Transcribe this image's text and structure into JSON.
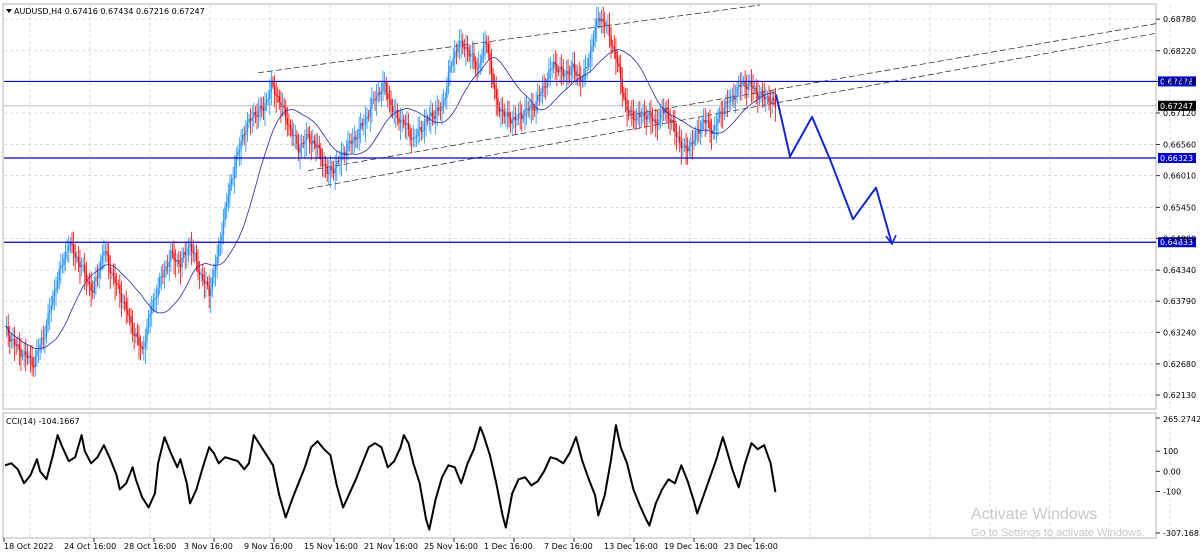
{
  "chart_data": {
    "type": "candlestick",
    "symbol_header": "AUDUSD,H4  0.67416 0.67434 0.67216 0.67247",
    "price_ticks": [
      "0.68780",
      "0.68220",
      "0.67678",
      "0.67120",
      "0.66560",
      "0.66010",
      "0.65450",
      "0.64900",
      "0.64340",
      "0.63790",
      "0.63240",
      "0.62680",
      "0.62130"
    ],
    "ylim": [
      0.619,
      0.6903
    ],
    "x_labels": [
      "18 Oct 2022",
      "24 Oct 16:00",
      "28 Oct 16:00",
      "3 Nov 16:00",
      "9 Nov 16:00",
      "15 Nov 16:00",
      "21 Nov 16:00",
      "25 Nov 16:00",
      "1 Dec 16:00",
      "7 Dec 16:00",
      "13 Dec 16:00",
      "19 Dec 16:00",
      "23 Dec 16:00"
    ],
    "horizontal_levels": [
      {
        "label": "0.67678",
        "value": 0.67678,
        "color": "#0000c8"
      },
      {
        "label": "0.66323",
        "value": 0.66323,
        "color": "#0000c8"
      },
      {
        "label": "0.64833",
        "value": 0.64833,
        "color": "#0000c8"
      }
    ],
    "current_price": {
      "label": "0.67247",
      "value": 0.67247,
      "color": "#000000"
    },
    "bull_color": "#1e90ff",
    "bear_color": "#ff0000",
    "ma_color": "#2828b4",
    "projection_color": "#1428d2",
    "close_path": [
      [
        0,
        0.633
      ],
      [
        8,
        0.6295
      ],
      [
        18,
        0.627
      ],
      [
        25,
        0.6325
      ],
      [
        32,
        0.641
      ],
      [
        40,
        0.6482
      ],
      [
        48,
        0.644
      ],
      [
        55,
        0.6395
      ],
      [
        62,
        0.647
      ],
      [
        68,
        0.642
      ],
      [
        74,
        0.638
      ],
      [
        80,
        0.633
      ],
      [
        86,
        0.629
      ],
      [
        92,
        0.637
      ],
      [
        98,
        0.642
      ],
      [
        104,
        0.646
      ],
      [
        110,
        0.6445
      ],
      [
        116,
        0.648
      ],
      [
        122,
        0.643
      ],
      [
        128,
        0.6395
      ],
      [
        133,
        0.6455
      ],
      [
        138,
        0.654
      ],
      [
        144,
        0.662
      ],
      [
        150,
        0.668
      ],
      [
        156,
        0.671
      ],
      [
        162,
        0.672
      ],
      [
        167,
        0.676
      ],
      [
        172,
        0.6735
      ],
      [
        178,
        0.669
      ],
      [
        184,
        0.665
      ],
      [
        190,
        0.667
      ],
      [
        196,
        0.665
      ],
      [
        202,
        0.6605
      ],
      [
        208,
        0.662
      ],
      [
        214,
        0.665
      ],
      [
        220,
        0.667
      ],
      [
        226,
        0.67
      ],
      [
        232,
        0.674
      ],
      [
        238,
        0.676
      ],
      [
        244,
        0.671
      ],
      [
        250,
        0.6695
      ],
      [
        256,
        0.6665
      ],
      [
        262,
        0.669
      ],
      [
        268,
        0.671
      ],
      [
        274,
        0.672
      ],
      [
        279,
        0.679
      ],
      [
        284,
        0.6835
      ],
      [
        290,
        0.6825
      ],
      [
        296,
        0.679
      ],
      [
        302,
        0.684
      ],
      [
        308,
        0.673
      ],
      [
        314,
        0.6705
      ],
      [
        320,
        0.67
      ],
      [
        326,
        0.6715
      ],
      [
        332,
        0.6725
      ],
      [
        338,
        0.676
      ],
      [
        344,
        0.68
      ],
      [
        350,
        0.678
      ],
      [
        356,
        0.679
      ],
      [
        362,
        0.677
      ],
      [
        367,
        0.682
      ],
      [
        372,
        0.6885
      ],
      [
        378,
        0.686
      ],
      [
        384,
        0.68
      ],
      [
        390,
        0.6715
      ],
      [
        396,
        0.6705
      ],
      [
        402,
        0.671
      ],
      [
        408,
        0.6695
      ],
      [
        414,
        0.672
      ],
      [
        420,
        0.668
      ],
      [
        426,
        0.6645
      ],
      [
        432,
        0.6665
      ],
      [
        438,
        0.67
      ],
      [
        444,
        0.668
      ],
      [
        450,
        0.672
      ],
      [
        456,
        0.674
      ],
      [
        462,
        0.6765
      ],
      [
        468,
        0.676
      ],
      [
        474,
        0.674
      ],
      [
        478,
        0.674
      ],
      [
        483,
        0.6725
      ]
    ],
    "cci": {
      "label": "CCI(14) -104.1667",
      "ticks": [
        "265.2742",
        "100",
        "0.00",
        "-100",
        "-307.1683"
      ],
      "ylim": [
        -307.1683,
        265.2742
      ],
      "values": [
        [
          0,
          30
        ],
        [
          4,
          40
        ],
        [
          8,
          10
        ],
        [
          12,
          -60
        ],
        [
          16,
          -20
        ],
        [
          20,
          60
        ],
        [
          22,
          0
        ],
        [
          26,
          -40
        ],
        [
          30,
          80
        ],
        [
          33,
          180
        ],
        [
          36,
          120
        ],
        [
          40,
          50
        ],
        [
          44,
          70
        ],
        [
          48,
          180
        ],
        [
          50,
          100
        ],
        [
          54,
          40
        ],
        [
          58,
          70
        ],
        [
          62,
          130
        ],
        [
          66,
          60
        ],
        [
          70,
          -20
        ],
        [
          72,
          -90
        ],
        [
          76,
          -60
        ],
        [
          80,
          20
        ],
        [
          82,
          -40
        ],
        [
          86,
          -130
        ],
        [
          90,
          -180
        ],
        [
          94,
          -110
        ],
        [
          96,
          40
        ],
        [
          100,
          170
        ],
        [
          104,
          90
        ],
        [
          108,
          20
        ],
        [
          110,
          60
        ],
        [
          114,
          -60
        ],
        [
          116,
          -160
        ],
        [
          120,
          -90
        ],
        [
          124,
          20
        ],
        [
          128,
          120
        ],
        [
          131,
          90
        ],
        [
          134,
          40
        ],
        [
          138,
          70
        ],
        [
          142,
          60
        ],
        [
          146,
          50
        ],
        [
          150,
          10
        ],
        [
          153,
          40
        ],
        [
          156,
          180
        ],
        [
          160,
          130
        ],
        [
          164,
          80
        ],
        [
          168,
          30
        ],
        [
          172,
          -120
        ],
        [
          176,
          -230
        ],
        [
          180,
          -140
        ],
        [
          184,
          -60
        ],
        [
          188,
          20
        ],
        [
          192,
          120
        ],
        [
          196,
          150
        ],
        [
          200,
          110
        ],
        [
          204,
          80
        ],
        [
          208,
          -70
        ],
        [
          212,
          -180
        ],
        [
          216,
          -110
        ],
        [
          220,
          -40
        ],
        [
          224,
          40
        ],
        [
          228,
          120
        ],
        [
          232,
          140
        ],
        [
          236,
          120
        ],
        [
          240,
          20
        ],
        [
          244,
          50
        ],
        [
          248,
          120
        ],
        [
          250,
          180
        ],
        [
          253,
          140
        ],
        [
          256,
          40
        ],
        [
          260,
          -60
        ],
        [
          264,
          -240
        ],
        [
          266,
          -290
        ],
        [
          270,
          -140
        ],
        [
          274,
          -30
        ],
        [
          278,
          30
        ],
        [
          282,
          20
        ],
        [
          286,
          -60
        ],
        [
          290,
          40
        ],
        [
          294,
          110
        ],
        [
          298,
          220
        ],
        [
          300,
          180
        ],
        [
          304,
          80
        ],
        [
          308,
          -60
        ],
        [
          312,
          -220
        ],
        [
          314,
          -280
        ],
        [
          318,
          -110
        ],
        [
          322,
          -40
        ],
        [
          326,
          -30
        ],
        [
          330,
          -70
        ],
        [
          334,
          -50
        ],
        [
          338,
          0
        ],
        [
          342,
          70
        ],
        [
          346,
          60
        ],
        [
          350,
          40
        ],
        [
          354,
          90
        ],
        [
          358,
          170
        ],
        [
          362,
          50
        ],
        [
          366,
          -40
        ],
        [
          370,
          -120
        ],
        [
          372,
          -220
        ],
        [
          376,
          -120
        ],
        [
          380,
          60
        ],
        [
          383,
          230
        ],
        [
          386,
          120
        ],
        [
          390,
          40
        ],
        [
          394,
          -90
        ],
        [
          398,
          -170
        ],
        [
          402,
          -240
        ],
        [
          404,
          -270
        ],
        [
          408,
          -160
        ],
        [
          412,
          -90
        ],
        [
          416,
          -40
        ],
        [
          420,
          -60
        ],
        [
          424,
          30
        ],
        [
          428,
          -50
        ],
        [
          432,
          -150
        ],
        [
          434,
          -210
        ],
        [
          438,
          -120
        ],
        [
          442,
          -30
        ],
        [
          446,
          60
        ],
        [
          450,
          170
        ],
        [
          452,
          120
        ],
        [
          456,
          10
        ],
        [
          460,
          -80
        ],
        [
          464,
          40
        ],
        [
          468,
          140
        ],
        [
          472,
          110
        ],
        [
          476,
          130
        ],
        [
          480,
          40
        ],
        [
          483,
          -104
        ]
      ]
    }
  },
  "watermark": {
    "title": "Activate Windows",
    "subtitle": "Go to Settings to activate Windows."
  }
}
